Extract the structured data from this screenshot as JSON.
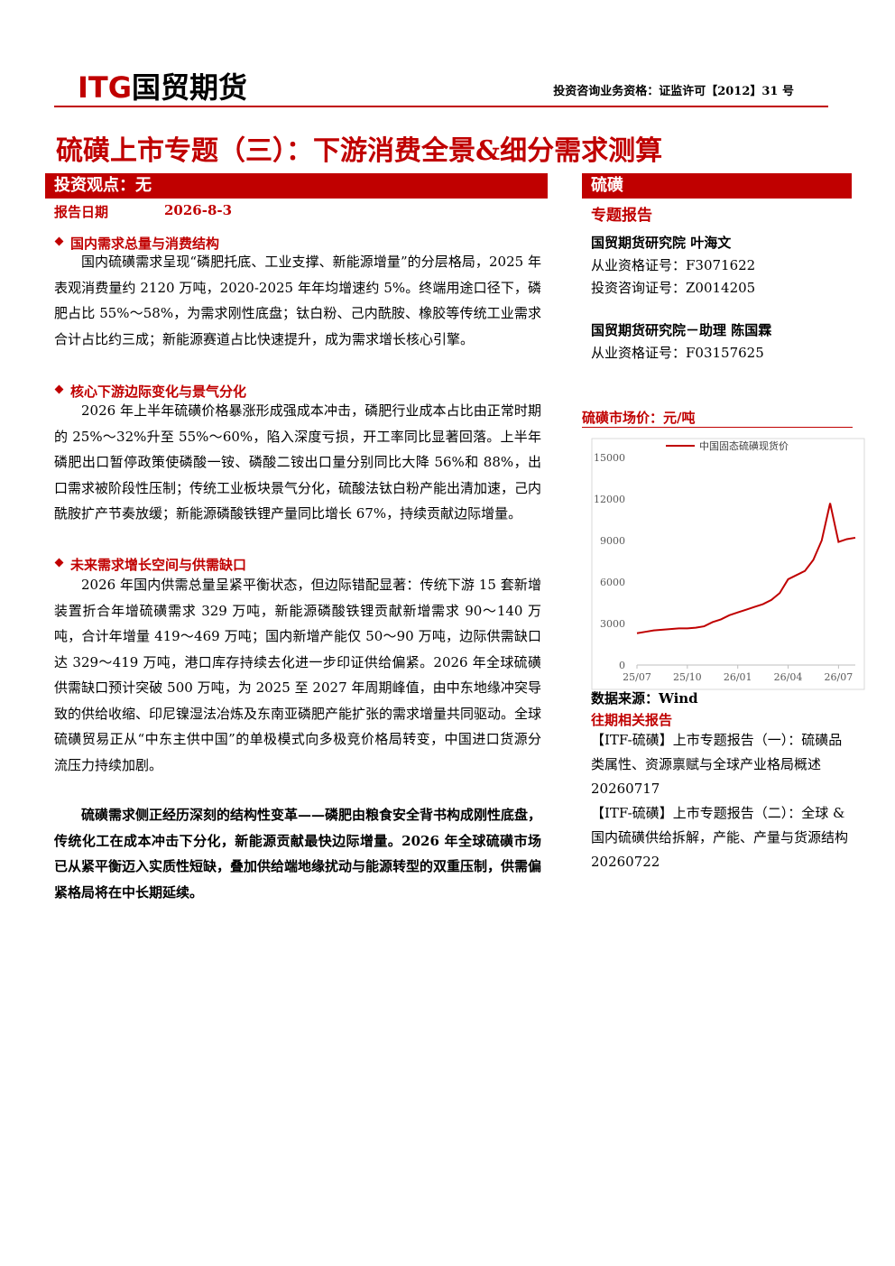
{
  "header": {
    "logo_brand": "ITG",
    "logo_name": "国贸期货",
    "qualification": "投资咨询业务资格：证监许可【2012】31 号"
  },
  "title": "硫磺上市专题（三）：下游消费全景&细分需求测算",
  "left": {
    "banner": "投资观点：无",
    "date_label": "报告日期",
    "date": "2026-8-3",
    "sections": [
      {
        "heading": "国内需求总量与消费结构",
        "text": "国内硫磺需求呈现“磷肥托底、工业支撑、新能源增量”的分层格局，2025 年表观消费量约 2120 万吨，2020-2025 年年均增速约 5%。终端用途口径下，磷肥占比 55%～58%，为需求刚性底盘；钛白粉、己内酰胺、橡胶等传统工业需求合计占比约三成；新能源赛道占比快速提升，成为需求增长核心引擎。"
      },
      {
        "heading": "核心下游边际变化与景气分化",
        "text": "2026 年上半年硫磺价格暴涨形成强成本冲击，磷肥行业成本占比由正常时期的 25%～32%升至 55%～60%，陷入深度亏损，开工率同比显著回落。上半年磷肥出口暂停政策使磷酸一铵、磷酸二铵出口量分别同比大降 56%和 88%，出口需求被阶段性压制；传统工业板块景气分化，硫酸法钛白粉产能出清加速，己内酰胺扩产节奏放缓；新能源磷酸铁锂产量同比增长 67%，持续贡献边际增量。"
      },
      {
        "heading": "未来需求增长空间与供需缺口",
        "text": "2026 年国内供需总量呈紧平衡状态，但边际错配显著：传统下游 15 套新增装置折合年增硫磺需求 329 万吨，新能源磷酸铁锂贡献新增需求 90～140 万吨，合计年增量 419～469 万吨；国内新增产能仅 50～90 万吨，边际供需缺口达 329～419 万吨，港口库存持续去化进一步印证供给偏紧。2026 年全球硫磺供需缺口预计突破 500 万吨，为 2025 至 2027 年周期峰值，由中东地缘冲突导致的供给收缩、印尼镍湿法冶炼及东南亚磷肥产能扩张的需求增量共同驱动。全球硫磺贸易正从“中东主供中国”的单极模式向多极竞价格局转变，中国进口货源分流压力持续加剧。"
      }
    ],
    "conclusion": "硫磺需求侧正经历深刻的结构性变革——磷肥由粮食安全背书构成刚性底盘，传统化工在成本冲击下分化，新能源贡献最快边际增量。2026 年全球硫磺市场已从紧平衡迈入实质性短缺，叠加供给端地缘扰动与能源转型的双重压制，供需偏紧格局将在中长期延续。"
  },
  "right": {
    "banner": "硫磺",
    "report_type": "专题报告",
    "authors": [
      {
        "name": "国贸期货研究院 叶海文",
        "lines": [
          "从业资格证号：F3071622",
          "投资咨询证号：Z0014205"
        ]
      },
      {
        "name": "国贸期货研究院－助理 陈国霖",
        "lines": [
          "从业资格证号：F03157625"
        ]
      }
    ],
    "chart_heading": "硫磺市场价：元/吨",
    "source": "数据来源：Wind",
    "related_heading": "往期相关报告",
    "related": [
      "【ITF-硫磺】上市专题报告（一）：硫磺品类属性、资源禀赋与全球产业格局概述 20260717",
      "【ITF-硫磺】上市专题报告（二）：全球 & 国内硫磺供给拆解，产能、产量与货源结构 20260722"
    ]
  },
  "chart_data": {
    "type": "line",
    "categories": [
      "25/07",
      null,
      null,
      null,
      null,
      null,
      "25/10",
      null,
      null,
      null,
      null,
      null,
      "26/01",
      null,
      null,
      null,
      null,
      null,
      "26/04",
      null,
      null,
      null,
      null,
      null,
      "26/07",
      null,
      null
    ],
    "series": [
      {
        "name": "中国固态硫磺现货价",
        "color": "#c00000",
        "values": [
          2300,
          2400,
          2500,
          2550,
          2600,
          2650,
          2650,
          2700,
          2800,
          3100,
          3300,
          3600,
          3800,
          4000,
          4200,
          4400,
          4700,
          5200,
          6200,
          6500,
          6800,
          7600,
          9000,
          11700,
          8900,
          9100,
          9200
        ]
      }
    ],
    "ylim": [
      0,
      15000
    ],
    "yticks": [
      0,
      3000,
      6000,
      9000,
      12000,
      15000
    ],
    "grid": false,
    "legend": "top"
  }
}
